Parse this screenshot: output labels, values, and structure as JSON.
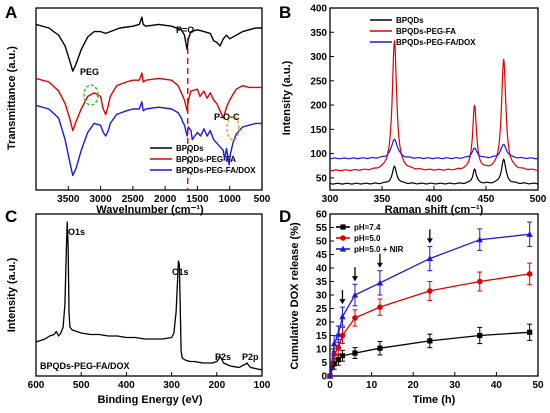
{
  "chart_data": [
    {
      "panel": "A",
      "type": "line",
      "xlabel": "Wavelnumber (cm⁻¹)",
      "ylabel": "Transmittance (a.u.)",
      "xlim": [
        4000,
        500
      ],
      "xticks": [
        "3500",
        "3000",
        "2500",
        "2000",
        "1500",
        "1000",
        "500"
      ],
      "xtick_values": [
        3500,
        3000,
        2500,
        2000,
        1500,
        1000,
        500
      ],
      "annotations": [
        "P=O",
        "PEG",
        "P-O-C"
      ],
      "pxo_at": 1650,
      "series": [
        {
          "name": "BPQDs",
          "color": "#000000",
          "x": [
            4000,
            3800,
            3650,
            3550,
            3480,
            3430,
            3380,
            3300,
            3200,
            3100,
            3000,
            2920,
            2850,
            2700,
            2500,
            2400,
            2360,
            2340,
            2300,
            2100,
            1900,
            1750,
            1700,
            1660,
            1640,
            1600,
            1500,
            1400,
            1300,
            1250,
            1200,
            1150,
            1100,
            1050,
            1000,
            900,
            800,
            700,
            600,
            500
          ],
          "y": [
            0.92,
            0.9,
            0.86,
            0.8,
            0.72,
            0.66,
            0.7,
            0.78,
            0.85,
            0.88,
            0.88,
            0.87,
            0.88,
            0.9,
            0.91,
            0.92,
            0.96,
            0.92,
            0.91,
            0.92,
            0.91,
            0.89,
            0.86,
            0.78,
            0.84,
            0.88,
            0.89,
            0.88,
            0.87,
            0.83,
            0.82,
            0.8,
            0.84,
            0.86,
            0.84,
            0.86,
            0.88,
            0.89,
            0.9,
            0.9
          ]
        },
        {
          "name": "BPQDs-PEG-FA",
          "color": "#e00000",
          "x": [
            4000,
            3800,
            3650,
            3550,
            3480,
            3430,
            3380,
            3300,
            3200,
            3100,
            3000,
            2960,
            2920,
            2880,
            2850,
            2750,
            2600,
            2500,
            2400,
            2360,
            2340,
            2300,
            2100,
            1900,
            1800,
            1750,
            1700,
            1660,
            1640,
            1600,
            1500,
            1460,
            1400,
            1350,
            1300,
            1250,
            1200,
            1150,
            1100,
            1050,
            1000,
            950,
            900,
            800,
            700,
            600,
            500
          ],
          "y": [
            0.62,
            0.6,
            0.55,
            0.48,
            0.4,
            0.33,
            0.38,
            0.45,
            0.52,
            0.54,
            0.52,
            0.45,
            0.42,
            0.47,
            0.52,
            0.58,
            0.6,
            0.61,
            0.61,
            0.65,
            0.6,
            0.61,
            0.62,
            0.61,
            0.58,
            0.54,
            0.5,
            0.44,
            0.5,
            0.55,
            0.56,
            0.52,
            0.55,
            0.51,
            0.54,
            0.5,
            0.48,
            0.44,
            0.4,
            0.46,
            0.5,
            0.53,
            0.56,
            0.58,
            0.57,
            0.57,
            0.57
          ]
        },
        {
          "name": "BPQDs-PEG-FA/DOX",
          "color": "#1a1ae0",
          "x": [
            4000,
            3800,
            3650,
            3550,
            3480,
            3430,
            3380,
            3300,
            3200,
            3100,
            3000,
            2960,
            2920,
            2880,
            2850,
            2750,
            2600,
            2500,
            2400,
            2360,
            2340,
            2300,
            2100,
            1900,
            1800,
            1750,
            1730,
            1700,
            1660,
            1640,
            1600,
            1580,
            1500,
            1450,
            1400,
            1350,
            1300,
            1250,
            1200,
            1150,
            1100,
            1080,
            1050,
            1010,
            990,
            950,
            900,
            800,
            700,
            600,
            500
          ],
          "y": [
            0.47,
            0.45,
            0.4,
            0.28,
            0.16,
            0.08,
            0.12,
            0.22,
            0.32,
            0.37,
            0.36,
            0.32,
            0.3,
            0.33,
            0.37,
            0.42,
            0.44,
            0.45,
            0.45,
            0.49,
            0.44,
            0.45,
            0.46,
            0.45,
            0.43,
            0.4,
            0.38,
            0.36,
            0.3,
            0.35,
            0.33,
            0.28,
            0.32,
            0.3,
            0.34,
            0.3,
            0.33,
            0.28,
            0.26,
            0.24,
            0.22,
            0.17,
            0.23,
            0.14,
            0.2,
            0.26,
            0.31,
            0.35,
            0.36,
            0.37,
            0.37
          ]
        }
      ]
    },
    {
      "panel": "B",
      "type": "line",
      "xlabel": "Raman shift (cm⁻¹)",
      "ylabel": "Intensity (a.u.)",
      "xlim": [
        300,
        500
      ],
      "ylim": [
        25,
        400
      ],
      "xticks": [
        "300",
        "350",
        "400",
        "450",
        "500"
      ],
      "xtick_values": [
        300,
        350,
        400,
        450,
        500
      ],
      "yticks": [
        "50",
        "100",
        "150",
        "200",
        "250",
        "300",
        "350",
        "400"
      ],
      "ytick_values": [
        50,
        100,
        150,
        200,
        250,
        300,
        350,
        400
      ],
      "peaks": [
        362,
        439,
        467
      ],
      "series": [
        {
          "name": "BPQDs",
          "color": "#000000",
          "base": 38,
          "heights": [
            35,
            30,
            50
          ],
          "widths": [
            2.5,
            2.0,
            2.5
          ]
        },
        {
          "name": "BPQDs-PEG-FA",
          "color": "#e00000",
          "base": 65,
          "heights": [
            268,
            133,
            228
          ],
          "widths": [
            2.5,
            2.2,
            2.5
          ]
        },
        {
          "name": "BPQDs-PEG-FA/DOX",
          "color": "#1a1ae0",
          "base": 90,
          "heights": [
            40,
            20,
            28
          ],
          "widths": [
            3.5,
            3.0,
            3.5
          ]
        }
      ]
    },
    {
      "panel": "C",
      "type": "line",
      "xlabel": "Binding Energy (eV)",
      "ylabel": "Intensity (a.u.)",
      "xlim": [
        600,
        100
      ],
      "xticks": [
        "600",
        "500",
        "400",
        "300",
        "200",
        "100"
      ],
      "xtick_values": [
        600,
        500,
        400,
        300,
        200,
        100
      ],
      "peak_labels": [
        "O1s",
        "C1s",
        "P2s",
        "P2p"
      ],
      "sample_label": "BPQDs-PEG-FA/DOX",
      "series": [
        {
          "name": "BPQDs-PEG-FA/DOX",
          "color": "#000000",
          "x": [
            600,
            590,
            580,
            570,
            560,
            555,
            550,
            545,
            540,
            536,
            533,
            531,
            529,
            527,
            525,
            520,
            510,
            500,
            480,
            460,
            440,
            420,
            400,
            380,
            360,
            340,
            320,
            300,
            295,
            290,
            287,
            285,
            283,
            281,
            279,
            277,
            275,
            270,
            260,
            250,
            240,
            230,
            220,
            210,
            200,
            195,
            192,
            190,
            185,
            170,
            160,
            150,
            145,
            135,
            133,
            131,
            125,
            110,
            100
          ],
          "y": [
            0.2,
            0.21,
            0.22,
            0.24,
            0.25,
            0.27,
            0.24,
            0.26,
            0.3,
            0.45,
            0.8,
            1.0,
            0.85,
            0.4,
            0.3,
            0.28,
            0.27,
            0.26,
            0.25,
            0.25,
            0.24,
            0.24,
            0.23,
            0.23,
            0.22,
            0.22,
            0.22,
            0.23,
            0.26,
            0.4,
            0.6,
            0.74,
            0.72,
            0.45,
            0.14,
            0.1,
            0.09,
            0.08,
            0.07,
            0.07,
            0.065,
            0.06,
            0.06,
            0.06,
            0.07,
            0.09,
            0.1,
            0.09,
            0.06,
            0.04,
            0.035,
            0.03,
            0.04,
            0.055,
            0.06,
            0.05,
            0.03,
            0.02,
            0.015
          ]
        }
      ]
    },
    {
      "panel": "D",
      "type": "line",
      "xlabel": "Time (h)",
      "ylabel": "Cumulative DOX release (%)",
      "xlim": [
        0,
        50
      ],
      "ylim": [
        0,
        60
      ],
      "xticks": [
        "0",
        "10",
        "20",
        "30",
        "40",
        "50"
      ],
      "xtick_values": [
        0,
        10,
        20,
        30,
        40,
        50
      ],
      "yticks": [
        "0",
        "5",
        "10",
        "15",
        "20",
        "25",
        "30",
        "35",
        "40",
        "45",
        "50",
        "55",
        "60"
      ],
      "ytick_values": [
        0,
        5,
        10,
        15,
        20,
        25,
        30,
        35,
        40,
        45,
        50,
        55,
        60
      ],
      "nir_arrows_at": [
        3,
        6,
        12,
        24
      ],
      "x": [
        0,
        1,
        2,
        3,
        6,
        12,
        24,
        36,
        48
      ],
      "series": [
        {
          "name": "pH=7.4",
          "color": "#000000",
          "marker": "square",
          "values": [
            0,
            4.5,
            6.0,
            7.5,
            8.5,
            10.3,
            13.0,
            15.0,
            16.2
          ],
          "errors": [
            0,
            2,
            2,
            2,
            2,
            2.5,
            2.5,
            3,
            3
          ]
        },
        {
          "name": "pH=5.0",
          "color": "#e00000",
          "marker": "circle",
          "values": [
            0,
            8.0,
            10.5,
            15.0,
            21.5,
            25.5,
            31.5,
            35.0,
            37.8
          ],
          "errors": [
            0,
            2,
            3,
            3,
            3,
            3,
            3.5,
            3.5,
            4
          ]
        },
        {
          "name": "pH=5.0 + NIR",
          "color": "#1a1ae0",
          "marker": "triangle",
          "values": [
            0,
            12.0,
            15.5,
            22.0,
            30.0,
            34.5,
            43.5,
            50.5,
            52.5
          ],
          "errors": [
            0,
            3,
            3,
            3.5,
            4,
            4.5,
            4.5,
            4,
            4.5
          ]
        }
      ]
    }
  ]
}
